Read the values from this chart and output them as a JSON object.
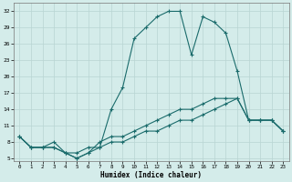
{
  "xlabel": "Humidex (Indice chaleur)",
  "bg_color": "#d4ecea",
  "grid_color": "#b8d4d2",
  "line_color": "#1a6b6b",
  "xlim": [
    -0.5,
    23.5
  ],
  "ylim": [
    4.5,
    33.5
  ],
  "yticks": [
    5,
    8,
    11,
    14,
    17,
    20,
    23,
    26,
    29,
    32
  ],
  "xticks": [
    0,
    1,
    2,
    3,
    4,
    5,
    6,
    7,
    8,
    9,
    10,
    11,
    12,
    13,
    14,
    15,
    16,
    17,
    18,
    19,
    20,
    21,
    22,
    23
  ],
  "s1_x": [
    0,
    1,
    2,
    3,
    4,
    5,
    6,
    7,
    8,
    9,
    10,
    11,
    12,
    13,
    14,
    15,
    16,
    17,
    18,
    19,
    20,
    21,
    22,
    23
  ],
  "s1_y": [
    9,
    7,
    7,
    8,
    6,
    6,
    7,
    7,
    14,
    18,
    27,
    29,
    31,
    32,
    32,
    24,
    31,
    30,
    28,
    21,
    12,
    12,
    12,
    10
  ],
  "s2_x": [
    0,
    1,
    2,
    3,
    4,
    5,
    6,
    7,
    8,
    9,
    10,
    11,
    12,
    13,
    14,
    15,
    16,
    17,
    18,
    19,
    20,
    21,
    22,
    23
  ],
  "s2_y": [
    9,
    7,
    7,
    7,
    6,
    5,
    6,
    8,
    9,
    9,
    10,
    11,
    12,
    13,
    14,
    14,
    15,
    16,
    16,
    16,
    12,
    12,
    12,
    10
  ],
  "s3_x": [
    0,
    1,
    2,
    3,
    4,
    5,
    6,
    7,
    8,
    9,
    10,
    11,
    12,
    13,
    14,
    15,
    16,
    17,
    18,
    19,
    20,
    21,
    22,
    23
  ],
  "s3_y": [
    9,
    7,
    7,
    7,
    6,
    5,
    6,
    7,
    8,
    8,
    9,
    10,
    10,
    11,
    12,
    12,
    13,
    14,
    15,
    16,
    12,
    12,
    12,
    10
  ]
}
